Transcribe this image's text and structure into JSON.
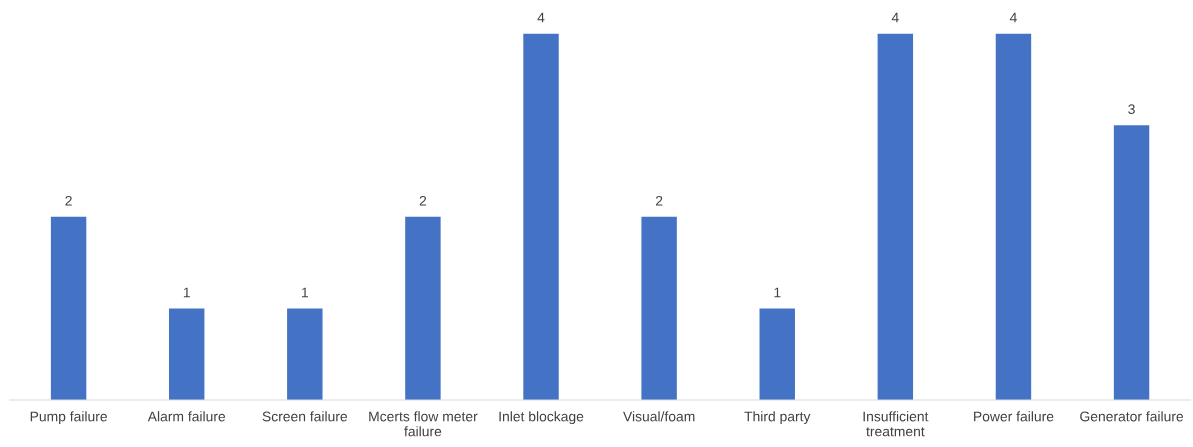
{
  "chart_data": {
    "type": "bar",
    "categories": [
      "Pump failure",
      "Alarm failure",
      "Screen failure",
      "Mcerts flow meter failure",
      "Inlet blockage",
      "Visual/foam",
      "Third party",
      "Insufficient treatment",
      "Power failure",
      "Generator failure"
    ],
    "values": [
      2,
      1,
      1,
      2,
      4,
      2,
      1,
      4,
      4,
      3
    ],
    "color": "#4472c4",
    "data_labels": true,
    "grid": false,
    "legend": false,
    "tick_labels": "x"
  }
}
